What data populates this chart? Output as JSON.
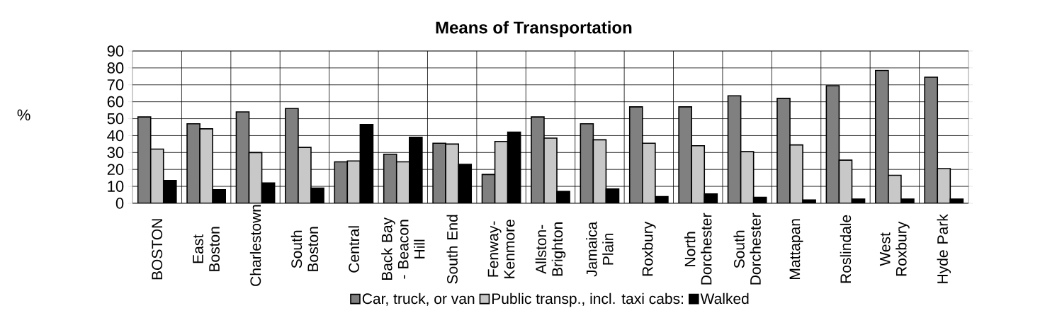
{
  "chart_data": {
    "type": "bar",
    "title": "Means of Transportation",
    "ylabel": "%",
    "categories": [
      "BOSTON",
      "East Boston",
      "Charlestown",
      "South Boston",
      "Central",
      "Back Bay - Beacon Hill",
      "South End",
      "Fenway-Kenmore",
      "Allston-Brighton",
      "Jamaica Plain",
      "Roxbury",
      "North Dorchester",
      "South Dorchester",
      "Mattapan",
      "Roslindale",
      "West Roxbury",
      "Hyde Park"
    ],
    "series": [
      {
        "name": "Car, truck, or van",
        "color": "#808080",
        "values": [
          51,
          47,
          54,
          56,
          24.5,
          29,
          35.5,
          17,
          51,
          47,
          57,
          57,
          63.5,
          62,
          69.5,
          78.5,
          74.5
        ]
      },
      {
        "name": "Public transp., incl. taxi cabs:",
        "color": "#c8c8c8",
        "values": [
          32,
          44,
          30,
          33,
          25,
          24.5,
          35,
          36.5,
          38.5,
          37.5,
          35.5,
          34,
          30.5,
          34.5,
          25.5,
          16.5,
          20.5
        ]
      },
      {
        "name": "Walked",
        "color": "#000000",
        "values": [
          13.5,
          8,
          12,
          9,
          46.5,
          39,
          23,
          42,
          7,
          8.5,
          4,
          5.5,
          3.5,
          2,
          2.5,
          2.5,
          2.5
        ]
      }
    ],
    "ylim": [
      0,
      90
    ],
    "yticks": [
      0,
      10,
      20,
      30,
      40,
      50,
      60,
      70,
      80,
      90
    ],
    "grid": true,
    "legend": "bottom"
  }
}
